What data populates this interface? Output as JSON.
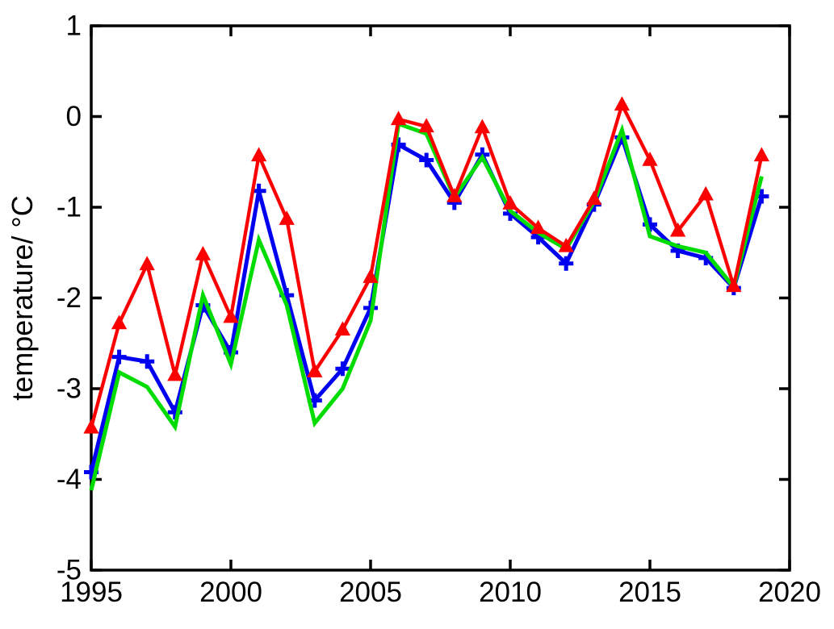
{
  "figure": {
    "background": "#ffffff",
    "axis_color": "#000000"
  },
  "chart_data": {
    "type": "line",
    "title": "",
    "xlabel": "",
    "ylabel": "temperature/ °C",
    "xlim": [
      1995,
      2020
    ],
    "ylim": [
      -5,
      1
    ],
    "xticks": [
      1995,
      2000,
      2005,
      2010,
      2015,
      2020
    ],
    "yticks": [
      1,
      0,
      -1,
      -2,
      -3,
      -4,
      -5
    ],
    "grid": false,
    "legend": "none",
    "box": true,
    "x": [
      1995,
      1996,
      1997,
      1998,
      1999,
      2000,
      2001,
      2002,
      2003,
      2004,
      2005,
      2006,
      2007,
      2008,
      2009,
      2010,
      2011,
      2012,
      2013,
      2014,
      2015,
      2016,
      2017,
      2018,
      2019
    ],
    "series": [
      {
        "name": "series-blue-plus",
        "color": "#0000f0",
        "marker": "plus",
        "line_width": 5,
        "values": [
          -3.92,
          -2.65,
          -2.7,
          -3.26,
          -2.08,
          -2.6,
          -0.82,
          -1.97,
          -3.13,
          -2.78,
          -2.11,
          -0.31,
          -0.48,
          -0.95,
          -0.42,
          -1.07,
          -1.33,
          -1.62,
          -0.97,
          -0.23,
          -1.19,
          -1.48,
          -1.56,
          -1.89,
          -0.88
        ]
      },
      {
        "name": "series-green-solid",
        "color": "#00dc00",
        "marker": "none",
        "line_width": 5,
        "values": [
          -4.12,
          -2.82,
          -2.98,
          -3.42,
          -1.97,
          -2.73,
          -1.36,
          -2.08,
          -3.38,
          -3.0,
          -2.25,
          -0.08,
          -0.19,
          -0.89,
          -0.45,
          -1.04,
          -1.28,
          -1.46,
          -0.94,
          -0.15,
          -1.32,
          -1.43,
          -1.5,
          -1.88,
          -0.66
        ]
      },
      {
        "name": "series-red-triangle",
        "color": "#fa0000",
        "marker": "triangle-up",
        "line_width": 4.3,
        "values": [
          -3.43,
          -2.28,
          -1.63,
          -2.85,
          -1.52,
          -2.21,
          -0.43,
          -1.13,
          -2.81,
          -2.35,
          -1.77,
          -0.03,
          -0.11,
          -0.88,
          -0.12,
          -0.96,
          -1.23,
          -1.43,
          -0.91,
          0.13,
          -0.48,
          -1.26,
          -0.86,
          -1.87,
          -0.43
        ]
      }
    ]
  }
}
